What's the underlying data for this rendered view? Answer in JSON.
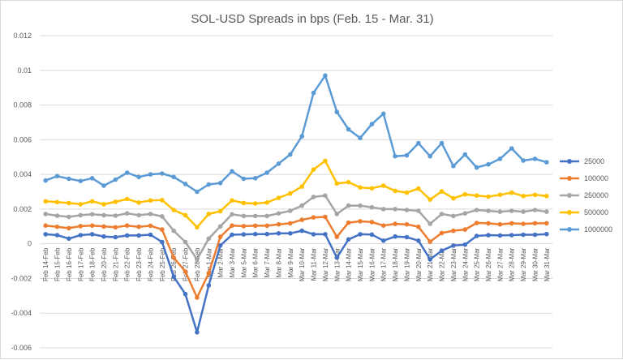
{
  "chart_data": {
    "type": "line",
    "title": "SOL-USD Spreads in bps (Feb. 15 - Mar. 31)",
    "xlabel": "",
    "ylabel": "",
    "ylim": [
      -0.006,
      0.012
    ],
    "yticks": [
      -0.006,
      -0.004,
      -0.002,
      0,
      0.002,
      0.004,
      0.006,
      0.008,
      0.01,
      0.012
    ],
    "ytick_labels": [
      "-0.006",
      "-0.004",
      "-0.002",
      "0",
      "0.002",
      "0.004",
      "0.006",
      "0.008",
      "0.01",
      "0.012"
    ],
    "grid": true,
    "legend_position": "right",
    "categories": [
      "Feb 14-Feb",
      "Feb 15-Feb",
      "Feb 16-Feb",
      "Feb 17-Feb",
      "Feb 18-Feb",
      "Feb 20-Feb",
      "Feb 21-Feb",
      "Feb 22-Feb",
      "Feb 23-Feb",
      "Feb 24-Feb",
      "Feb 25-Feb",
      "Feb 26-Feb",
      "Feb 27-Feb",
      "Feb 28-Feb",
      "Mar 1-Mar",
      "Mar 2-Mar",
      "Mar 3-Mar",
      "Mar 5-Mar",
      "Mar 6-Mar",
      "Mar 7-Mar",
      "Mar 8-Mar",
      "Mar 9-Mar",
      "Mar 10-Mar",
      "Mar 11-Mar",
      "Mar 12-Mar",
      "Mar 13-Mar",
      "Mar 14-Mar",
      "Mar 15-Mar",
      "Mar 16-Mar",
      "Mar 17-Mar",
      "Mar 18-Mar",
      "Mar 19-Mar",
      "Mar 20-Mar",
      "Mar 21-Mar",
      "Mar 22-Mar",
      "Mar 23-Mar",
      "Mar 24-Mar",
      "Mar 25-Mar",
      "Mar 26-Mar",
      "Mar 27-Mar",
      "Mar 28-Mar",
      "Mar 29-Mar",
      "Mar 30-Mar",
      "Mar 31-Mar"
    ],
    "series": [
      {
        "name": "25000",
        "color": "#4472c4",
        "values": [
          0.00055,
          0.0005,
          0.0003,
          0.0005,
          0.00055,
          0.00042,
          0.00038,
          0.00048,
          0.00048,
          0.00052,
          0.0001,
          -0.0019,
          -0.0029,
          -0.0051,
          -0.0024,
          -0.0001,
          0.00052,
          0.00054,
          0.00056,
          0.00056,
          0.0006,
          0.0006,
          0.00075,
          0.00055,
          0.00055,
          -0.0008,
          0.00025,
          0.00055,
          0.00053,
          0.00018,
          0.00042,
          0.00038,
          0.00018,
          -0.0009,
          -0.0004,
          -0.0001,
          -5e-05,
          0.00045,
          0.0005,
          0.00048,
          0.0005,
          0.00052,
          0.00052,
          0.00056
        ]
      },
      {
        "name": "100000",
        "color": "#ed7d31",
        "values": [
          0.00105,
          0.00098,
          0.0009,
          0.00102,
          0.00105,
          0.001,
          0.00095,
          0.00105,
          0.00098,
          0.00104,
          0.00082,
          -0.0008,
          -0.0016,
          -0.0031,
          -0.0017,
          0.0004,
          0.00105,
          0.00102,
          0.00104,
          0.00104,
          0.00112,
          0.00118,
          0.00138,
          0.00152,
          0.00155,
          0.0004,
          0.00122,
          0.0013,
          0.00125,
          0.00105,
          0.00115,
          0.00112,
          0.00098,
          0.00012,
          0.00062,
          0.00075,
          0.00082,
          0.0012,
          0.00118,
          0.00112,
          0.00118,
          0.00115,
          0.00118,
          0.00118
        ]
      },
      {
        "name": "250000",
        "color": "#a5a5a5",
        "values": [
          0.00172,
          0.00162,
          0.00155,
          0.00165,
          0.0017,
          0.00165,
          0.00162,
          0.00175,
          0.00165,
          0.00172,
          0.00158,
          0.00075,
          0.0001,
          -0.0009,
          0.0003,
          0.001,
          0.0017,
          0.0016,
          0.0016,
          0.0016,
          0.00175,
          0.0019,
          0.0022,
          0.0027,
          0.00278,
          0.00172,
          0.0022,
          0.0022,
          0.0021,
          0.002,
          0.002,
          0.00195,
          0.0019,
          0.00115,
          0.00172,
          0.0016,
          0.00175,
          0.00195,
          0.0019,
          0.00185,
          0.0019,
          0.00185,
          0.00195,
          0.00185
        ]
      },
      {
        "name": "500000",
        "color": "#ffc000",
        "values": [
          0.00245,
          0.0024,
          0.00235,
          0.00228,
          0.00245,
          0.00228,
          0.00242,
          0.00258,
          0.00238,
          0.0025,
          0.00252,
          0.00195,
          0.00165,
          0.00095,
          0.00172,
          0.00188,
          0.0025,
          0.00235,
          0.00232,
          0.00238,
          0.00265,
          0.0029,
          0.0033,
          0.00428,
          0.00478,
          0.00348,
          0.00355,
          0.00325,
          0.0032,
          0.00335,
          0.00305,
          0.00295,
          0.00318,
          0.00255,
          0.00302,
          0.00262,
          0.00285,
          0.00278,
          0.00272,
          0.00282,
          0.00295,
          0.00275,
          0.00282,
          0.00275
        ]
      },
      {
        "name": "1000000",
        "color": "#5b9bd5",
        "values": [
          0.00365,
          0.0039,
          0.00375,
          0.00362,
          0.00378,
          0.00335,
          0.0037,
          0.0041,
          0.00385,
          0.004,
          0.00405,
          0.00385,
          0.00345,
          0.003,
          0.00342,
          0.0035,
          0.00418,
          0.00375,
          0.00378,
          0.0041,
          0.00462,
          0.00515,
          0.0062,
          0.0087,
          0.0097,
          0.0076,
          0.0066,
          0.0061,
          0.0069,
          0.0075,
          0.00505,
          0.0051,
          0.0058,
          0.00505,
          0.0058,
          0.00448,
          0.00515,
          0.0044,
          0.00458,
          0.0049,
          0.0055,
          0.0048,
          0.0049,
          0.0047
        ]
      }
    ]
  }
}
